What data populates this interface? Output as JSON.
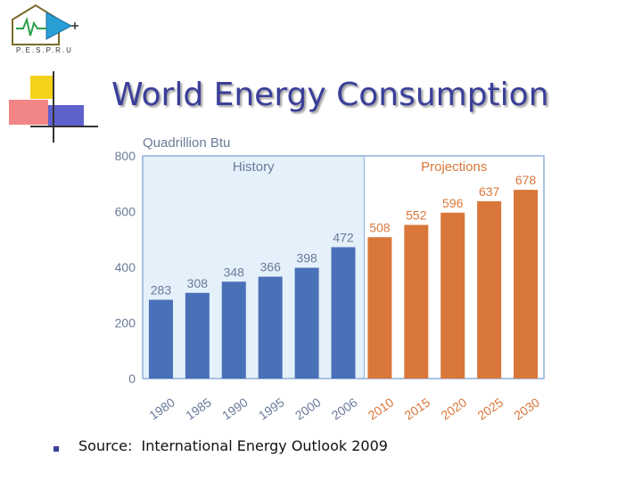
{
  "logo": {
    "text": "P.E.S.P.R.U"
  },
  "slide": {
    "title": "World Energy Consumption",
    "source_label": "Source:",
    "source_text": "International Energy Outlook 2009"
  },
  "chart_data": {
    "type": "bar",
    "unit_label": "Quadrillion Btu",
    "history_label": "History",
    "projections_label": "Projections",
    "categories": [
      "1980",
      "1985",
      "1990",
      "1995",
      "2000",
      "2006",
      "2010",
      "2015",
      "2020",
      "2025",
      "2030"
    ],
    "values": [
      283,
      308,
      348,
      366,
      398,
      472,
      508,
      552,
      596,
      637,
      678
    ],
    "data_labels": [
      "283",
      "308",
      "348",
      "366",
      "398",
      "472",
      "508",
      "552",
      "596",
      "637",
      "678"
    ],
    "projection_start_index": 6,
    "ylim": [
      0,
      800
    ],
    "yticks": [
      "0",
      "200",
      "400",
      "600",
      "800"
    ],
    "colors": {
      "history": "#4a70b8",
      "projection": "#d9773a",
      "history_bg": "#e4f0fa",
      "axis": "#8fb0d8",
      "text": "#6a7a9a"
    }
  }
}
